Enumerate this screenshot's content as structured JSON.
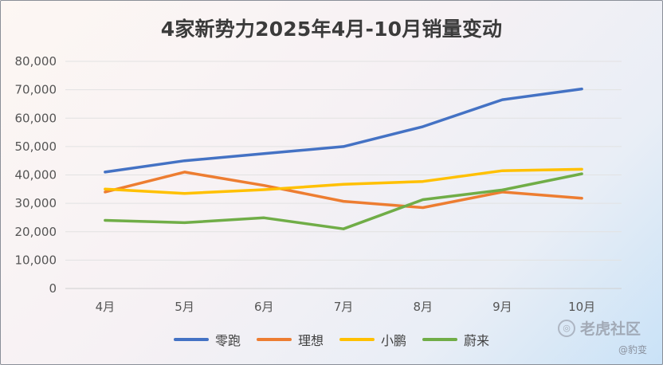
{
  "chart_data": {
    "type": "line",
    "title": "4家新势力2025年4月-10月销量变动",
    "categories": [
      "4月",
      "5月",
      "6月",
      "7月",
      "8月",
      "9月",
      "10月"
    ],
    "ylim": [
      0,
      80000
    ],
    "yticks": [
      0,
      10000,
      20000,
      30000,
      40000,
      50000,
      60000,
      70000,
      80000
    ],
    "ytick_labels": [
      "0",
      "10,000",
      "20,000",
      "30,000",
      "40,000",
      "50,000",
      "60,000",
      "70,000",
      "80,000"
    ],
    "grid": true,
    "legend_position": "bottom",
    "series": [
      {
        "name": "零跑",
        "color": "#4472c4",
        "values": [
          41000,
          45000,
          47500,
          50000,
          57000,
          66500,
          70300
        ]
      },
      {
        "name": "理想",
        "color": "#ed7d31",
        "values": [
          34000,
          41000,
          36300,
          30700,
          28500,
          34000,
          31800
        ]
      },
      {
        "name": "小鹏",
        "color": "#ffc000",
        "values": [
          35000,
          33500,
          34800,
          36700,
          37700,
          41500,
          42000
        ]
      },
      {
        "name": "蔚来",
        "color": "#70ad47",
        "values": [
          24000,
          23200,
          24900,
          21000,
          31300,
          34700,
          40400
        ]
      }
    ]
  },
  "watermark": {
    "text": "老虎社区",
    "icon": "tiger-logo-icon",
    "author": "@豹变"
  }
}
